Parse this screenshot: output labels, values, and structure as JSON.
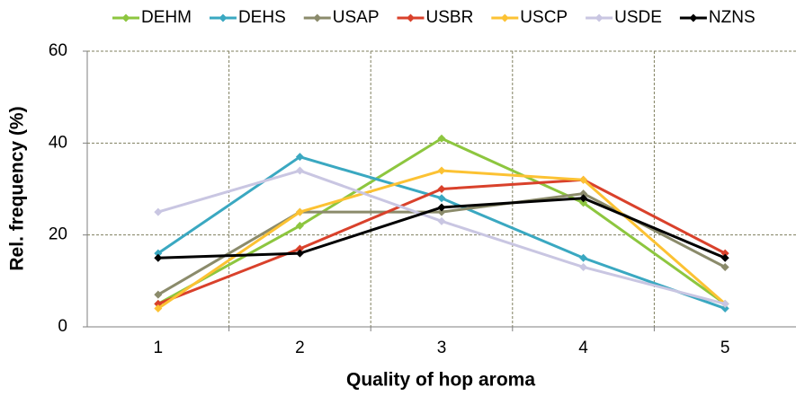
{
  "chart_data": {
    "type": "line",
    "x": [
      1,
      2,
      3,
      4,
      5
    ],
    "xlim": [
      0.5,
      5.5
    ],
    "xticks": [
      1,
      2,
      3,
      4,
      5
    ],
    "x_gridlines": [
      1.5,
      2.5,
      3.5,
      4.5
    ],
    "ylim": [
      0,
      60
    ],
    "yticks": [
      0,
      20,
      40,
      60
    ],
    "grid": true,
    "xlabel": "Quality of hop aroma",
    "ylabel": "Rel. frequency (%)",
    "legend": "top",
    "series": [
      {
        "name": "DEHM",
        "color": "#8dc63f",
        "values": [
          5,
          22,
          41,
          27,
          5
        ]
      },
      {
        "name": "DEHS",
        "color": "#3aa8c1",
        "values": [
          16,
          37,
          28,
          15,
          4
        ]
      },
      {
        "name": "USAP",
        "color": "#8b8b6b",
        "values": [
          7,
          25,
          25,
          29,
          13
        ]
      },
      {
        "name": "USBR",
        "color": "#d9412b",
        "values": [
          5,
          17,
          30,
          32,
          16
        ]
      },
      {
        "name": "USCP",
        "color": "#fcc233",
        "values": [
          4,
          25,
          34,
          32,
          5
        ]
      },
      {
        "name": "USDE",
        "color": "#c9c6e2",
        "values": [
          25,
          34,
          23,
          13,
          5
        ]
      },
      {
        "name": "NZNS",
        "color": "#000000",
        "values": [
          15,
          16,
          26,
          28,
          15
        ]
      }
    ]
  }
}
